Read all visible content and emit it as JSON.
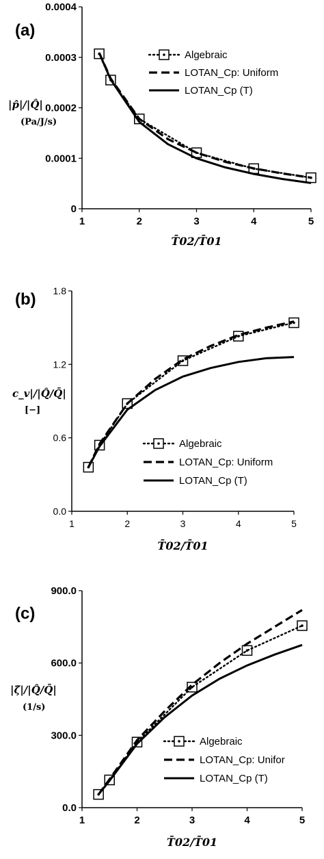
{
  "chart_data": [
    {
      "id": "a",
      "type": "line",
      "panel_label": "(a)",
      "ylabel": "|p̂|/|Q̂|",
      "ylabel_unit": "(Pa/J/s)",
      "xlabel": "T̄02/T̄01",
      "xlim": [
        1,
        5
      ],
      "ylim": [
        0,
        0.0004
      ],
      "xticks": [
        "1",
        "2",
        "3",
        "4",
        "5"
      ],
      "yticks": [
        "0",
        "0.0001",
        "0.0002",
        "0.0003",
        "0.0004"
      ],
      "ytick_values": [
        0,
        0.0001,
        0.0002,
        0.0003,
        0.0004
      ],
      "legend_position": "top-right",
      "series": [
        {
          "name": "Algebraic",
          "style": "markers-dotted",
          "x": [
            1.3,
            1.5,
            2,
            3,
            4,
            5
          ],
          "y": [
            0.000307,
            0.000255,
            0.000178,
            0.000111,
            7.95e-05,
            6.15e-05
          ]
        },
        {
          "name": "LOTAN_Cp: Uniform",
          "style": "dashed",
          "x": [
            1.3,
            1.5,
            2,
            2.5,
            3,
            3.5,
            4,
            4.5,
            5
          ],
          "y": [
            0.000309,
            0.000258,
            0.000178,
            0.000138,
            0.000111,
            9.3e-05,
            8e-05,
            7e-05,
            6.15e-05
          ]
        },
        {
          "name": "LOTAN_Cp (T)",
          "style": "solid",
          "x": [
            1.3,
            1.5,
            2,
            2.5,
            3,
            3.5,
            4,
            4.5,
            5
          ],
          "y": [
            0.000309,
            0.000256,
            0.000172,
            0.000128,
            0.0001,
            8.2e-05,
            6.9e-05,
            5.9e-05,
            5.1e-05
          ]
        }
      ]
    },
    {
      "id": "b",
      "type": "line",
      "panel_label": "(b)",
      "ylabel": "c_v|/|Q̂/Q̄|",
      "ylabel_unit": "[−]",
      "xlabel": "T̄02/T̄01",
      "xlim": [
        1,
        5
      ],
      "ylim": [
        0,
        1.8
      ],
      "xticks": [
        "1",
        "2",
        "3",
        "4",
        "5"
      ],
      "yticks": [
        "0.0",
        "0.6",
        "1.2",
        "1.8"
      ],
      "ytick_values": [
        0,
        0.6,
        1.2,
        1.8
      ],
      "legend_position": "bottom-right",
      "series": [
        {
          "name": "Algebraic",
          "style": "markers-dotted",
          "x": [
            1.3,
            1.5,
            2,
            3,
            4,
            5
          ],
          "y": [
            0.36,
            0.54,
            0.88,
            1.23,
            1.43,
            1.54
          ]
        },
        {
          "name": "LOTAN_Cp: Uniform",
          "style": "dashed",
          "x": [
            1.3,
            1.5,
            2,
            2.5,
            3,
            3.5,
            4,
            4.5,
            5
          ],
          "y": [
            0.36,
            0.55,
            0.88,
            1.08,
            1.24,
            1.35,
            1.44,
            1.5,
            1.55
          ]
        },
        {
          "name": "LOTAN_Cp (T)",
          "style": "solid",
          "x": [
            1.3,
            1.5,
            2,
            2.5,
            3,
            3.5,
            4,
            4.5,
            5
          ],
          "y": [
            0.36,
            0.53,
            0.83,
            0.99,
            1.1,
            1.17,
            1.22,
            1.25,
            1.26
          ]
        }
      ]
    },
    {
      "id": "c",
      "type": "line",
      "panel_label": "(c)",
      "ylabel": "|ζ̂|/|Q̂/Q̄|",
      "ylabel_unit": "(1/s)",
      "xlabel": "T̄02/T̄01",
      "xlim": [
        1,
        5
      ],
      "ylim": [
        0,
        900
      ],
      "xticks": [
        "1",
        "2",
        "3",
        "4",
        "5"
      ],
      "yticks": [
        "0.0",
        "300.0",
        "600.0",
        "900.0"
      ],
      "ytick_values": [
        0,
        300,
        600,
        900
      ],
      "legend_position": "bottom-right",
      "series": [
        {
          "name": "Algebraic",
          "style": "markers-dotted",
          "x": [
            1.3,
            1.5,
            2,
            3,
            4,
            5
          ],
          "y": [
            55,
            115,
            272,
            500,
            652,
            755
          ]
        },
        {
          "name": "LOTAN_Cp: Uniform",
          "style": "dashed",
          "x": [
            1.3,
            1.5,
            2,
            2.5,
            3,
            3.5,
            4,
            4.5,
            5
          ],
          "y": [
            55,
            118,
            280,
            400,
            510,
            600,
            680,
            750,
            820
          ]
        },
        {
          "name": "LOTAN_Cp (T)",
          "style": "solid",
          "x": [
            1.3,
            1.5,
            2,
            2.5,
            3,
            3.5,
            4,
            4.5,
            5
          ],
          "y": [
            55,
            112,
            265,
            375,
            465,
            535,
            590,
            635,
            675
          ]
        }
      ],
      "legend_labels_shown": [
        "Algebraic",
        "LOTAN_Cp: Unifor",
        "LOTAN_Cp (T)"
      ]
    }
  ]
}
